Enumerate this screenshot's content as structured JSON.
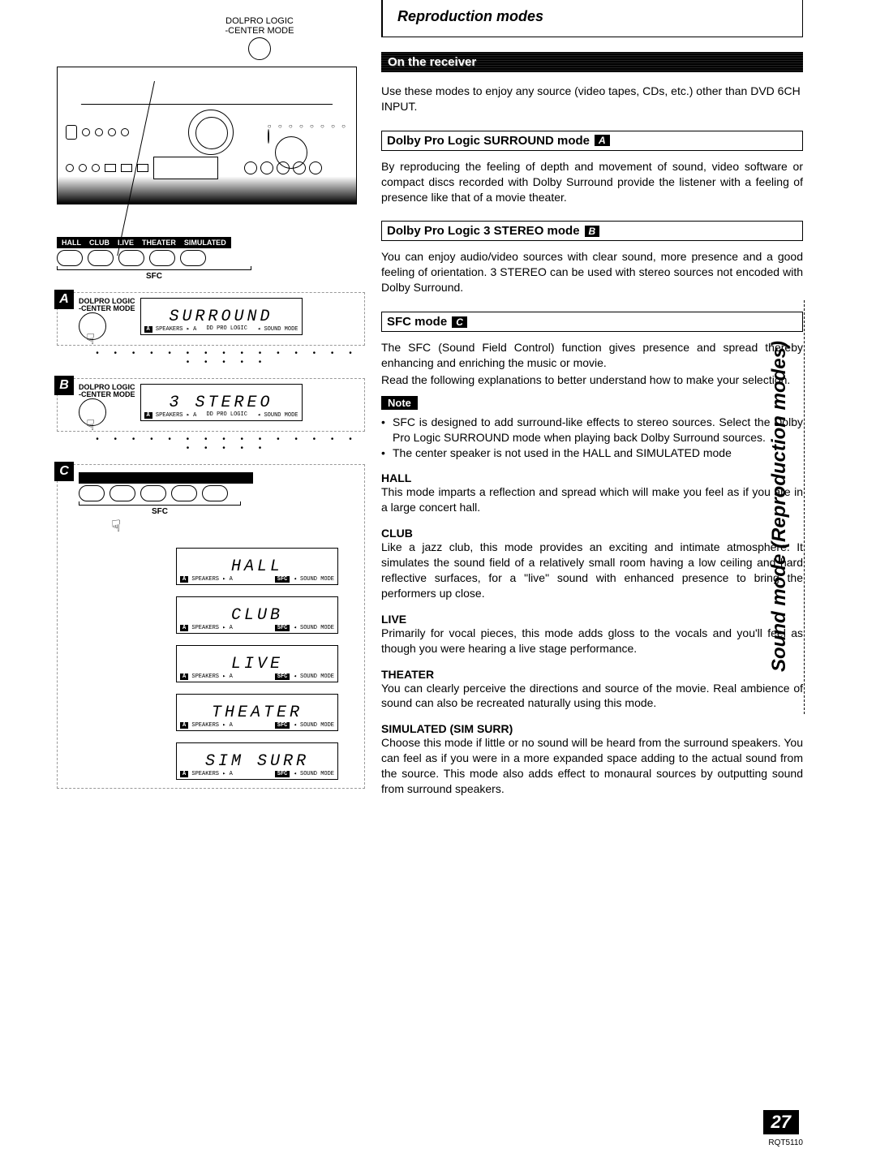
{
  "page": {
    "number": "27",
    "doc_id": "RQT5110"
  },
  "side_tab": "Sound mode (Reproduction modes)",
  "left": {
    "top_labels": {
      "line1": "DOLPRO LOGIC",
      "line2": "-CENTER MODE"
    },
    "sfc_buttons": [
      "HALL",
      "CLUB",
      "LIVE",
      "THEATER",
      "SIMULATED"
    ],
    "sfc_label": "SFC",
    "panels": {
      "A": {
        "label1": "DOLPRO LOGIC",
        "label2": "-CENTER MODE",
        "lcd_text": "SURROUND",
        "sub_left": "SPEAKERS ▸ A",
        "sub_mid": "DD PRO LOGIC",
        "sub_right": "◂ SOUND MODE"
      },
      "B": {
        "label1": "DOLPRO LOGIC",
        "label2": "-CENTER MODE",
        "lcd_text": "3 STEREO",
        "sub_left": "SPEAKERS ▸ A",
        "sub_mid": "DD PRO LOGIC",
        "sub_right": "◂ SOUND MODE"
      },
      "C": {
        "displays": [
          {
            "text": "HALL",
            "sub_left": "SPEAKERS ▸ A",
            "sub_tag": "SFC",
            "sub_right": "◂ SOUND MODE"
          },
          {
            "text": "CLUB",
            "sub_left": "SPEAKERS ▸ A",
            "sub_tag": "SFC",
            "sub_right": "◂ SOUND MODE"
          },
          {
            "text": "LIVE",
            "sub_left": "SPEAKERS ▸ A",
            "sub_tag": "SFC",
            "sub_right": "◂ SOUND MODE"
          },
          {
            "text": "THEATER",
            "sub_left": "SPEAKERS ▸ A",
            "sub_tag": "SFC",
            "sub_right": "◂ SOUND MODE"
          },
          {
            "text": "SIM SURR",
            "sub_left": "SPEAKERS ▸ A",
            "sub_tag": "SFC",
            "sub_right": "◂ SOUND MODE"
          }
        ]
      }
    }
  },
  "right": {
    "title": "Reproduction modes",
    "black_bar": "On the receiver",
    "intro": "Use these modes to enjoy any source (video tapes, CDs, etc.) other than DVD 6CH INPUT.",
    "mode_a": {
      "heading": "Dolby Pro Logic SURROUND mode",
      "chip": "A",
      "body": "By reproducing the feeling of depth and movement of sound, video software or compact discs recorded with Dolby Surround provide the listener with a feeling of presence like that of a movie theater."
    },
    "mode_b": {
      "heading": "Dolby Pro Logic 3 STEREO mode",
      "chip": "B",
      "body": "You can enjoy audio/video sources with clear sound, more presence and a good feeling of orientation. 3 STEREO can be used with stereo sources not encoded with Dolby Surround."
    },
    "mode_c": {
      "heading": "SFC mode",
      "chip": "C",
      "body1": "The SFC (Sound Field Control) function gives presence and spread thereby enhancing and enriching the music or movie.",
      "body2": "Read the following explanations to better understand how to make your selection.",
      "note_label": "Note",
      "notes": [
        "SFC is designed to add surround-like effects to stereo sources. Select the Dolby Pro Logic SURROUND mode when playing back Dolby Surround sources.",
        "The center speaker is not used in the HALL and SIMULATED mode"
      ],
      "submodes": [
        {
          "name": "HALL",
          "body": "This mode imparts a reflection and spread which will make you feel as if you are in a large concert hall."
        },
        {
          "name": "CLUB",
          "body": "Like a jazz club, this mode provides an exciting and intimate atmosphere. It simulates the sound field of a relatively small room having a low ceiling and hard reflective surfaces, for a \"live\" sound with enhanced presence to bring the performers up close."
        },
        {
          "name": "LIVE",
          "body": "Primarily for vocal pieces, this mode adds gloss to the vocals and you'll feel as though you were hearing a live stage performance."
        },
        {
          "name": "THEATER",
          "body": "You can clearly perceive the directions and source of the movie. Real ambience of sound can also be recreated naturally using this mode."
        },
        {
          "name": "SIMULATED (SIM SURR)",
          "body": "Choose this mode if little or no sound will be heard from the surround speakers.\nYou can feel as if you were in a more expanded space adding to the actual sound from the source.\nThis mode also adds effect to monaural sources by outputting sound from surround speakers."
        }
      ]
    }
  }
}
